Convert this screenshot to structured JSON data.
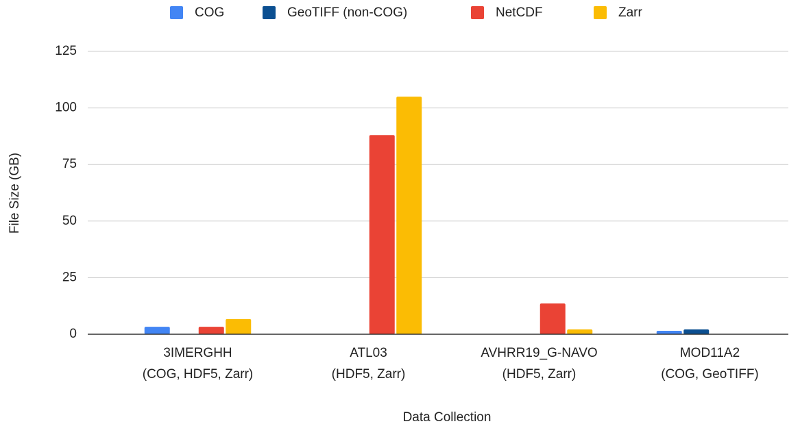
{
  "chart_data": {
    "type": "bar",
    "x_label": "Data Collection",
    "y_label": "File Size (GB)",
    "categories": [
      [
        "3IMERGHH",
        "(COG, HDF5, Zarr)"
      ],
      [
        "ATL03",
        "(HDF5, Zarr)"
      ],
      [
        "AVHRR19_G-NAVO",
        "(HDF5, Zarr)"
      ],
      [
        "MOD11A2",
        "(COG, GeoTIFF)"
      ]
    ],
    "series": [
      {
        "name": "COG",
        "color": "#4285f4",
        "values": [
          3.3,
          null,
          null,
          1.5
        ]
      },
      {
        "name": "GeoTIFF (non-COG)",
        "color": "#0b4f91",
        "values": [
          null,
          null,
          null,
          2.1
        ]
      },
      {
        "name": "NetCDF",
        "color": "#ea4335",
        "values": [
          3.3,
          88,
          13.6,
          null
        ]
      },
      {
        "name": "Zarr",
        "color": "#fbbc04",
        "values": [
          6.7,
          105,
          2.1,
          null
        ]
      }
    ],
    "ylim": [
      0,
      125
    ],
    "yticks": [
      0,
      25,
      50,
      75,
      100,
      125
    ],
    "grid": true,
    "legend": "top"
  }
}
